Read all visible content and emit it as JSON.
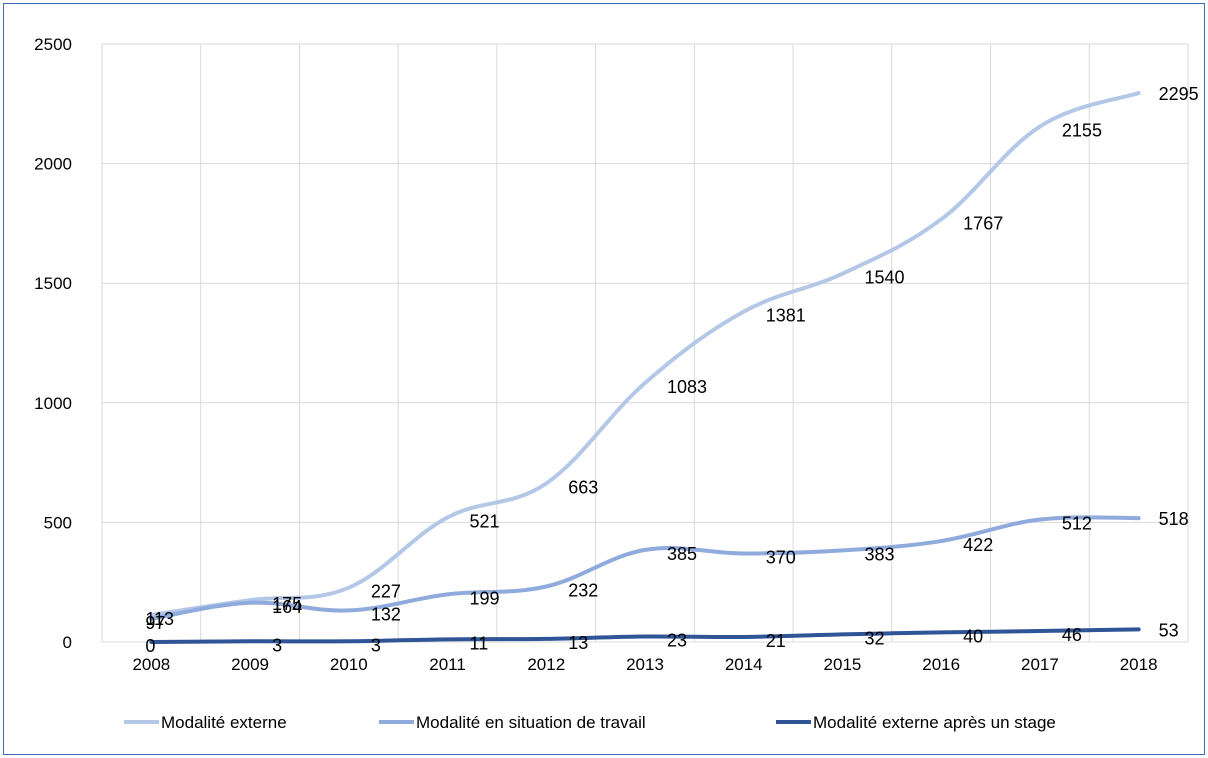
{
  "chart_data": {
    "type": "line",
    "categories": [
      "2008",
      "2009",
      "2010",
      "2011",
      "2012",
      "2013",
      "2014",
      "2015",
      "2016",
      "2017",
      "2018"
    ],
    "series": [
      {
        "name": "Modalité externe",
        "color": "#b4c7e7",
        "values": [
          113,
          175,
          227,
          521,
          663,
          1083,
          1381,
          1540,
          1767,
          2155,
          2295
        ]
      },
      {
        "name": "Modalité en situation de travail",
        "color": "#8faadc",
        "values": [
          97,
          164,
          132,
          199,
          232,
          385,
          370,
          383,
          422,
          512,
          518
        ]
      },
      {
        "name": "Modalité externe après un stage",
        "color": "#2f5597",
        "values": [
          0,
          3,
          3,
          11,
          13,
          23,
          21,
          32,
          40,
          46,
          53
        ]
      }
    ],
    "y_ticks": [
      "0",
      "500",
      "1000",
      "1500",
      "2000",
      "2500"
    ],
    "ylim": [
      0,
      2500
    ],
    "grid": true,
    "smooth": true,
    "legend_position": "bottom"
  }
}
